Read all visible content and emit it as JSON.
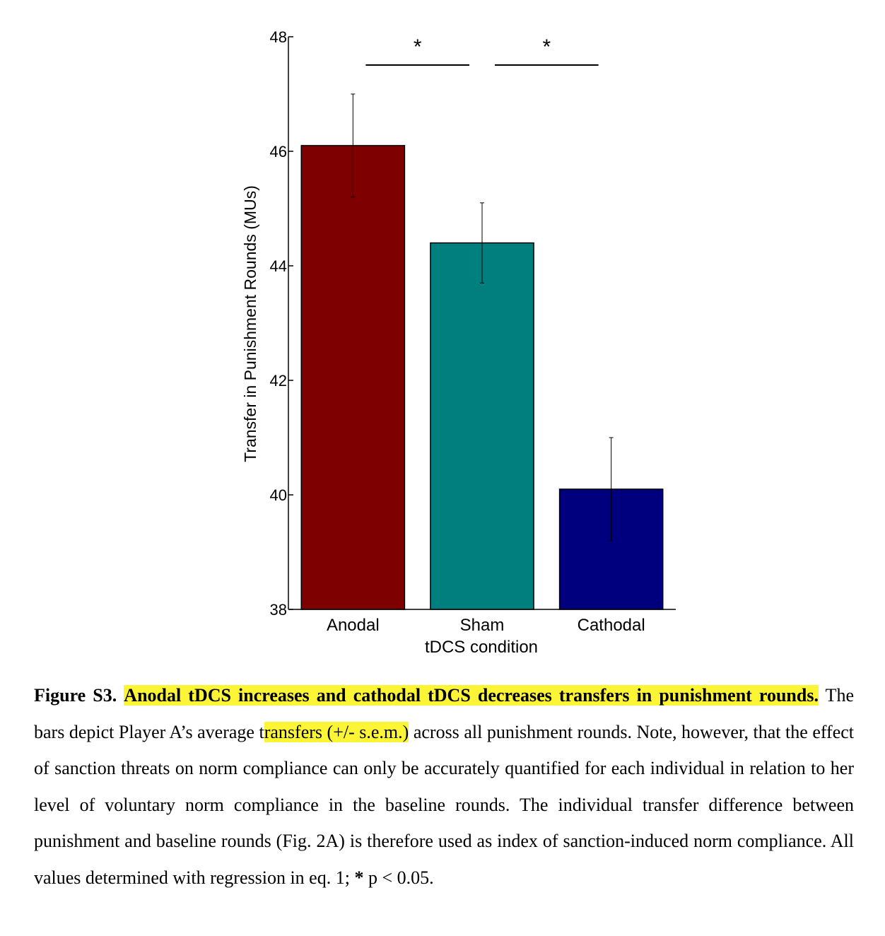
{
  "chart_data": {
    "type": "bar",
    "categories": [
      "Anodal",
      "Sham",
      "Cathodal"
    ],
    "values": [
      46.1,
      44.4,
      40.1
    ],
    "error_bars": [
      0.9,
      0.7,
      0.9
    ],
    "colors": [
      "#7f0000",
      "#007f7f",
      "#00007f"
    ],
    "xlabel": "tDCS condition",
    "ylabel": "Transfer in Punishment Rounds (MUs)",
    "ylim": [
      38,
      48
    ],
    "yticks": [
      "38",
      "40",
      "42",
      "44",
      "46",
      "48"
    ],
    "grid": false,
    "significance": [
      {
        "between": [
          "Anodal",
          "Sham"
        ],
        "label": "*"
      },
      {
        "between": [
          "Sham",
          "Cathodal"
        ],
        "label": "*"
      }
    ]
  },
  "caption": {
    "label": "Figure S3.",
    "title": "Anodal tDCS increases and cathodal tDCS decreases transfers in punishment rounds.",
    "text_before": "The bars depict Player A’s average t",
    "text_highlight": "ransfers (+/- s.e.m.)",
    "text_after": "across all punishment rounds. Note, however, that the effect of sanction threats on norm compliance can only be accurately quantified for each individual in relation to her level of voluntary norm compliance in the baseline rounds. The individual transfer difference between punishment and baseline rounds (Fig. 2A) is therefore used as index of sanction-induced norm compliance. All values determined with regression in eq. 1;",
    "star": "*",
    "pvalue": "p < 0.05."
  }
}
